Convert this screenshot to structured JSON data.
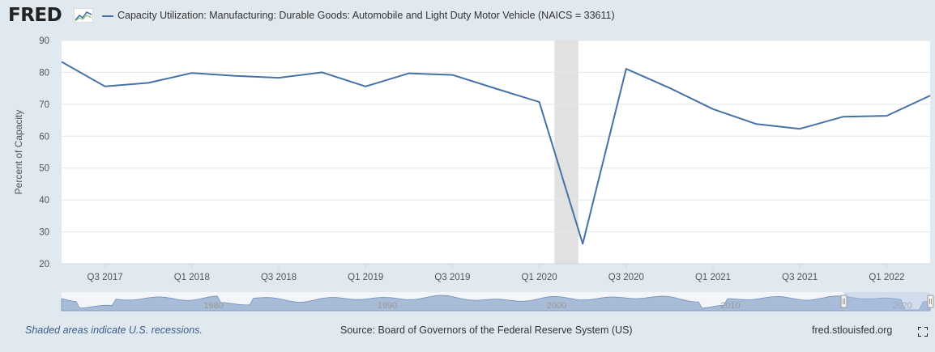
{
  "header": {
    "logo_text": "FRED",
    "series_title": "Capacity Utilization: Manufacturing: Durable Goods: Automobile and Light Duty Motor Vehicle (NAICS = 33611)"
  },
  "colors": {
    "series": "#4572a7",
    "recession": "#e1e1e1",
    "navigator_fill": "#8fa8cc",
    "background": "#e1e9f0"
  },
  "chart_data": {
    "type": "line",
    "title": "Capacity Utilization: Manufacturing: Durable Goods: Automobile and Light Duty Motor Vehicle (NAICS = 33611)",
    "ylabel": "Percent of Capacity",
    "xlabel": "",
    "ylim": [
      20,
      90
    ],
    "yticks": [
      20,
      30,
      40,
      50,
      60,
      70,
      80,
      90
    ],
    "xticks": [
      "Q3 2017",
      "Q1 2018",
      "Q3 2018",
      "Q1 2019",
      "Q3 2019",
      "Q1 2020",
      "Q3 2020",
      "Q1 2021",
      "Q3 2021",
      "Q1 2022"
    ],
    "grid": true,
    "x": [
      "Q2 2017",
      "Q3 2017",
      "Q4 2017",
      "Q1 2018",
      "Q2 2018",
      "Q3 2018",
      "Q4 2018",
      "Q1 2019",
      "Q2 2019",
      "Q3 2019",
      "Q4 2019",
      "Q1 2020",
      "Q2 2020",
      "Q3 2020",
      "Q4 2020",
      "Q1 2021",
      "Q2 2021",
      "Q3 2021",
      "Q4 2021",
      "Q1 2022",
      "Q2 2022"
    ],
    "series": [
      {
        "name": "Capacity Utilization: Manufacturing: Durable Goods: Automobile and Light Duty Motor Vehicle (NAICS = 33611)",
        "values": [
          83.3,
          75.6,
          76.7,
          79.8,
          78.9,
          78.3,
          80.0,
          75.6,
          79.7,
          79.2,
          74.9,
          70.7,
          26.3,
          81.1,
          75.1,
          68.5,
          63.8,
          62.3,
          66.1,
          66.4,
          72.7
        ]
      }
    ],
    "recessions": [
      [
        "Q1 2020",
        "Q2 2020"
      ]
    ],
    "navigator": {
      "labels": [
        "1980",
        "1990",
        "2000",
        "2010",
        "2020"
      ]
    }
  },
  "footer": {
    "recession_note": "Shaded areas indicate U.S. recessions.",
    "source": "Source: Board of Governors of the Federal Reserve System (US)",
    "site": "fred.stlouisfed.org"
  }
}
